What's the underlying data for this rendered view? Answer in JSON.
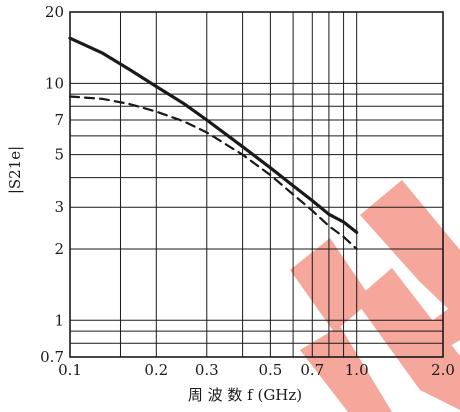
{
  "chart_data": {
    "type": "line",
    "title": "",
    "xlabel": "周 波 数 f (GHz)",
    "ylabel": "|S21e|",
    "xscale": "log",
    "yscale": "log",
    "xlim": [
      0.1,
      2.0
    ],
    "ylim": [
      0.7,
      20
    ],
    "grid": true,
    "x_ticks": [
      {
        "value": 0.1,
        "label": "0.1"
      },
      {
        "value": 0.2,
        "label": "0.2"
      },
      {
        "value": 0.3,
        "label": "0.3"
      },
      {
        "value": 0.5,
        "label": "0.5"
      },
      {
        "value": 0.7,
        "label": "0.7"
      },
      {
        "value": 1.0,
        "label": "1.0"
      },
      {
        "value": 2.0,
        "label": "2.0"
      }
    ],
    "y_ticks": [
      {
        "value": 0.7,
        "label": "0.7"
      },
      {
        "value": 1,
        "label": "1"
      },
      {
        "value": 2,
        "label": "2"
      },
      {
        "value": 3,
        "label": "3"
      },
      {
        "value": 5,
        "label": "5"
      },
      {
        "value": 7,
        "label": "7"
      },
      {
        "value": 10,
        "label": "10"
      },
      {
        "value": 20,
        "label": "20"
      }
    ],
    "x_grid_values": [
      0.1,
      0.15,
      0.2,
      0.3,
      0.4,
      0.5,
      0.6,
      0.7,
      0.8,
      0.9,
      1.0,
      2.0
    ],
    "y_grid_values": [
      0.7,
      0.8,
      0.9,
      1,
      2,
      3,
      4,
      5,
      6,
      7,
      8,
      9,
      10,
      20
    ],
    "series": [
      {
        "style": "solid",
        "color": "#1a1a1a",
        "x": [
          0.1,
          0.13,
          0.16,
          0.2,
          0.25,
          0.3,
          0.4,
          0.5,
          0.6,
          0.7,
          0.8,
          0.9,
          1.0
        ],
        "y": [
          15.5,
          13.4,
          11.5,
          9.7,
          8.2,
          7.0,
          5.4,
          4.4,
          3.7,
          3.2,
          2.8,
          2.6,
          2.35
        ]
      },
      {
        "style": "dashed",
        "color": "#1a1a1a",
        "x": [
          0.1,
          0.13,
          0.16,
          0.2,
          0.25,
          0.3,
          0.4,
          0.5,
          0.6,
          0.7,
          0.8,
          0.9,
          1.0
        ],
        "y": [
          8.8,
          8.6,
          8.2,
          7.6,
          6.9,
          6.2,
          5.0,
          4.1,
          3.4,
          2.9,
          2.5,
          2.25,
          2.0
        ]
      }
    ],
    "watermark_color": "#f4a79a"
  }
}
